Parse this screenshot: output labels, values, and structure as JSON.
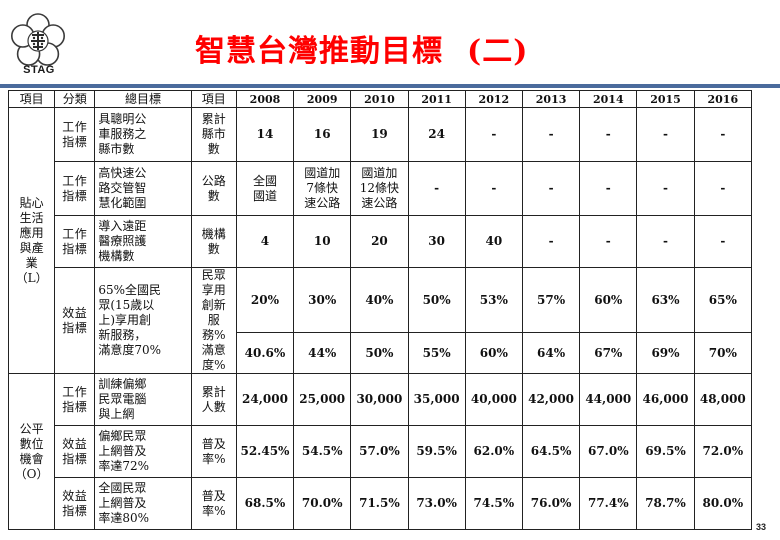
{
  "header": {
    "title": "智慧台灣推動目標",
    "title_sub": "(二)",
    "logo_text": "STAG"
  },
  "table": {
    "head": {
      "item": "項目",
      "category": "分類",
      "goal": "總目標",
      "unit": "項目",
      "years": [
        "2008",
        "2009",
        "2010",
        "2011",
        "2012",
        "2013",
        "2014",
        "2015",
        "2016"
      ]
    },
    "section1": {
      "label": "貼心\n生活\n應用\n與產\n業\n（L）",
      "rows": [
        {
          "category": "工作\n指標",
          "goal": "具聰明公\n車服務之\n縣市數",
          "unit": "累計\n縣市\n數",
          "values": [
            "14",
            "16",
            "19",
            "24",
            "-",
            "-",
            "-",
            "-",
            "-"
          ]
        },
        {
          "category": "工作\n指標",
          "goal": "高快速公\n路交管智\n慧化範圍",
          "unit": "公路\n數",
          "values": [
            "全國\n國道",
            "國道加\n7條快\n速公路",
            "國道加\n12條快\n速公路",
            "-",
            "-",
            "-",
            "-",
            "-",
            "-"
          ]
        },
        {
          "category": "工作\n指標",
          "goal": "導入遠距\n醫療照護\n機構數",
          "unit": "機構\n數",
          "values": [
            "4",
            "10",
            "20",
            "30",
            "40",
            "-",
            "-",
            "-",
            "-"
          ]
        },
        {
          "category": "效益\n指標",
          "goal": "65%全國民\n眾(15歲以\n上)享用創\n新服務，\n滿意度70%",
          "unit": "民眾\n享用\n創新\n服\n務%\n滿意\n度%",
          "values_a": [
            "20%",
            "30%",
            "40%",
            "50%",
            "53%",
            "57%",
            "60%",
            "63%",
            "65%"
          ],
          "values_b": [
            "40.6%",
            "44%",
            "50%",
            "55%",
            "60%",
            "64%",
            "67%",
            "69%",
            "70%"
          ]
        }
      ]
    },
    "section2": {
      "label": "公平\n數位\n機會\n（O）",
      "rows": [
        {
          "category": "工作\n指標",
          "goal": "訓練偏鄉\n民眾電腦\n與上網",
          "unit": "累計\n人數",
          "values": [
            "24,000",
            "25,000",
            "30,000",
            "35,000",
            "40,000",
            "42,000",
            "44,000",
            "46,000",
            "48,000"
          ]
        },
        {
          "category": "效益\n指標",
          "goal": "偏鄉民眾\n上網普及\n率達72%",
          "unit": "普及\n率%",
          "values": [
            "52.45%",
            "54.5%",
            "57.0%",
            "59.5%",
            "62.0%",
            "64.5%",
            "67.0%",
            "69.5%",
            "72.0%"
          ]
        },
        {
          "category": "效益\n指標",
          "goal": "全國民眾\n上網普及\n率達80%",
          "unit": "普及\n率%",
          "values": [
            "68.5%",
            "70.0%",
            "71.5%",
            "73.0%",
            "74.5%",
            "76.0%",
            "77.4%",
            "78.7%",
            "80.0%"
          ]
        }
      ]
    }
  },
  "footer": {
    "page_number": "33"
  },
  "colors": {
    "title": "#ff0000",
    "rule": "#4a6b9c"
  }
}
